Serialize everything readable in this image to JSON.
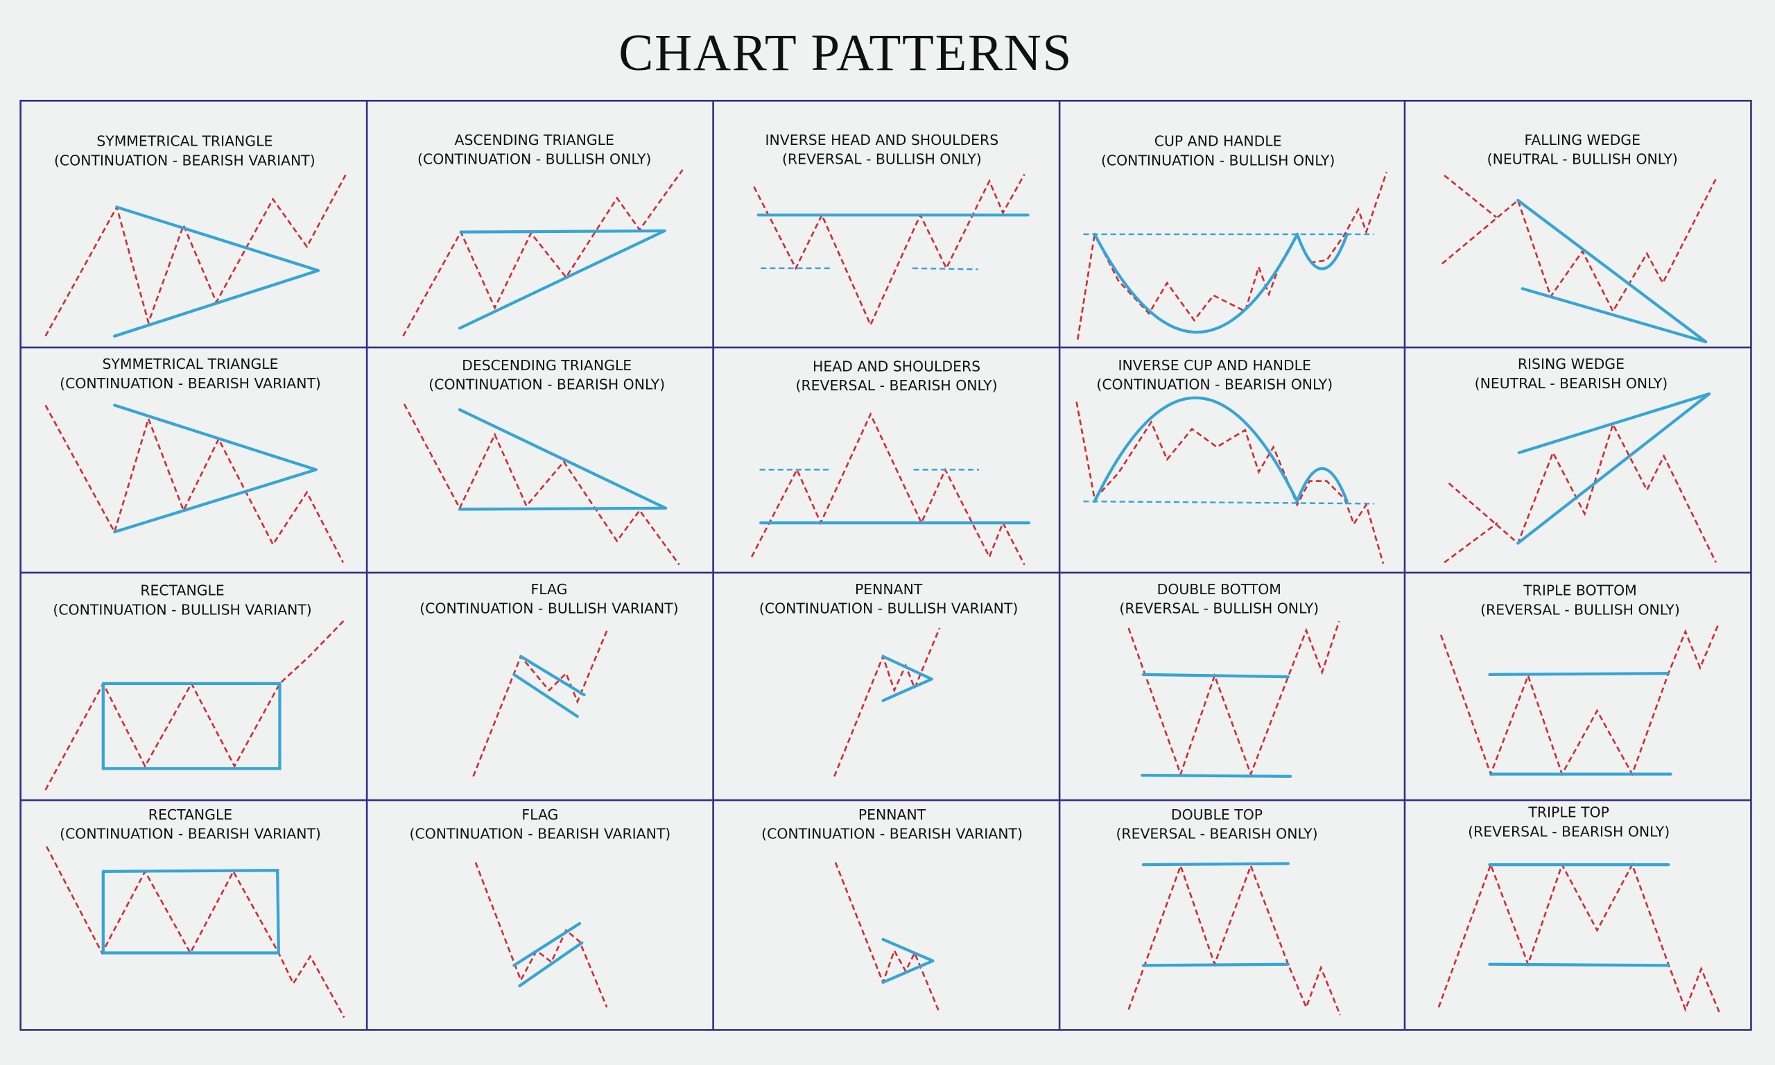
{
  "title": "CHART PATTERNS",
  "cells": [
    {
      "name": "SYMMETRICAL TRIANGLE",
      "kind": "(CONTINUATION - BEARISH VARIANT)"
    },
    {
      "name": "ASCENDING TRIANGLE",
      "kind": "(CONTINUATION - BULLISH ONLY)"
    },
    {
      "name": "INVERSE HEAD AND SHOULDERS",
      "kind": "(REVERSAL - BULLISH ONLY)"
    },
    {
      "name": "CUP AND HANDLE",
      "kind": "(CONTINUATION - BULLISH ONLY)"
    },
    {
      "name": "FALLING WEDGE",
      "kind": "(NEUTRAL - BULLISH ONLY)"
    },
    {
      "name": "SYMMETRICAL TRIANGLE",
      "kind": "(CONTINUATION - BEARISH VARIANT)"
    },
    {
      "name": "DESCENDING TRIANGLE",
      "kind": "(CONTINUATION - BEARISH ONLY)"
    },
    {
      "name": "HEAD AND SHOULDERS",
      "kind": "(REVERSAL - BEARISH ONLY)"
    },
    {
      "name": "INVERSE CUP AND HANDLE",
      "kind": "(CONTINUATION - BEARISH ONLY)"
    },
    {
      "name": "RISING WEDGE",
      "kind": "(NEUTRAL - BEARISH ONLY)"
    },
    {
      "name": "RECTANGLE",
      "kind": "(CONTINUATION - BULLISH VARIANT)"
    },
    {
      "name": "FLAG",
      "kind": "(CONTINUATION - BULLISH VARIANT)"
    },
    {
      "name": "PENNANT",
      "kind": "(CONTINUATION - BULLISH VARIANT)"
    },
    {
      "name": "DOUBLE BOTTOM",
      "kind": "(REVERSAL - BULLISH ONLY)"
    },
    {
      "name": "TRIPLE BOTTOM",
      "kind": "(REVERSAL - BULLISH ONLY)"
    },
    {
      "name": "RECTANGLE",
      "kind": "(CONTINUATION - BEARISH VARIANT)"
    },
    {
      "name": "FLAG",
      "kind": "(CONTINUATION - BEARISH VARIANT)"
    },
    {
      "name": "PENNANT",
      "kind": "(CONTINUATION - BEARISH VARIANT)"
    },
    {
      "name": "DOUBLE TOP",
      "kind": "(REVERSAL - BEARISH ONLY)"
    },
    {
      "name": "TRIPLE TOP",
      "kind": "(REVERSAL - BEARISH ONLY)"
    }
  ]
}
